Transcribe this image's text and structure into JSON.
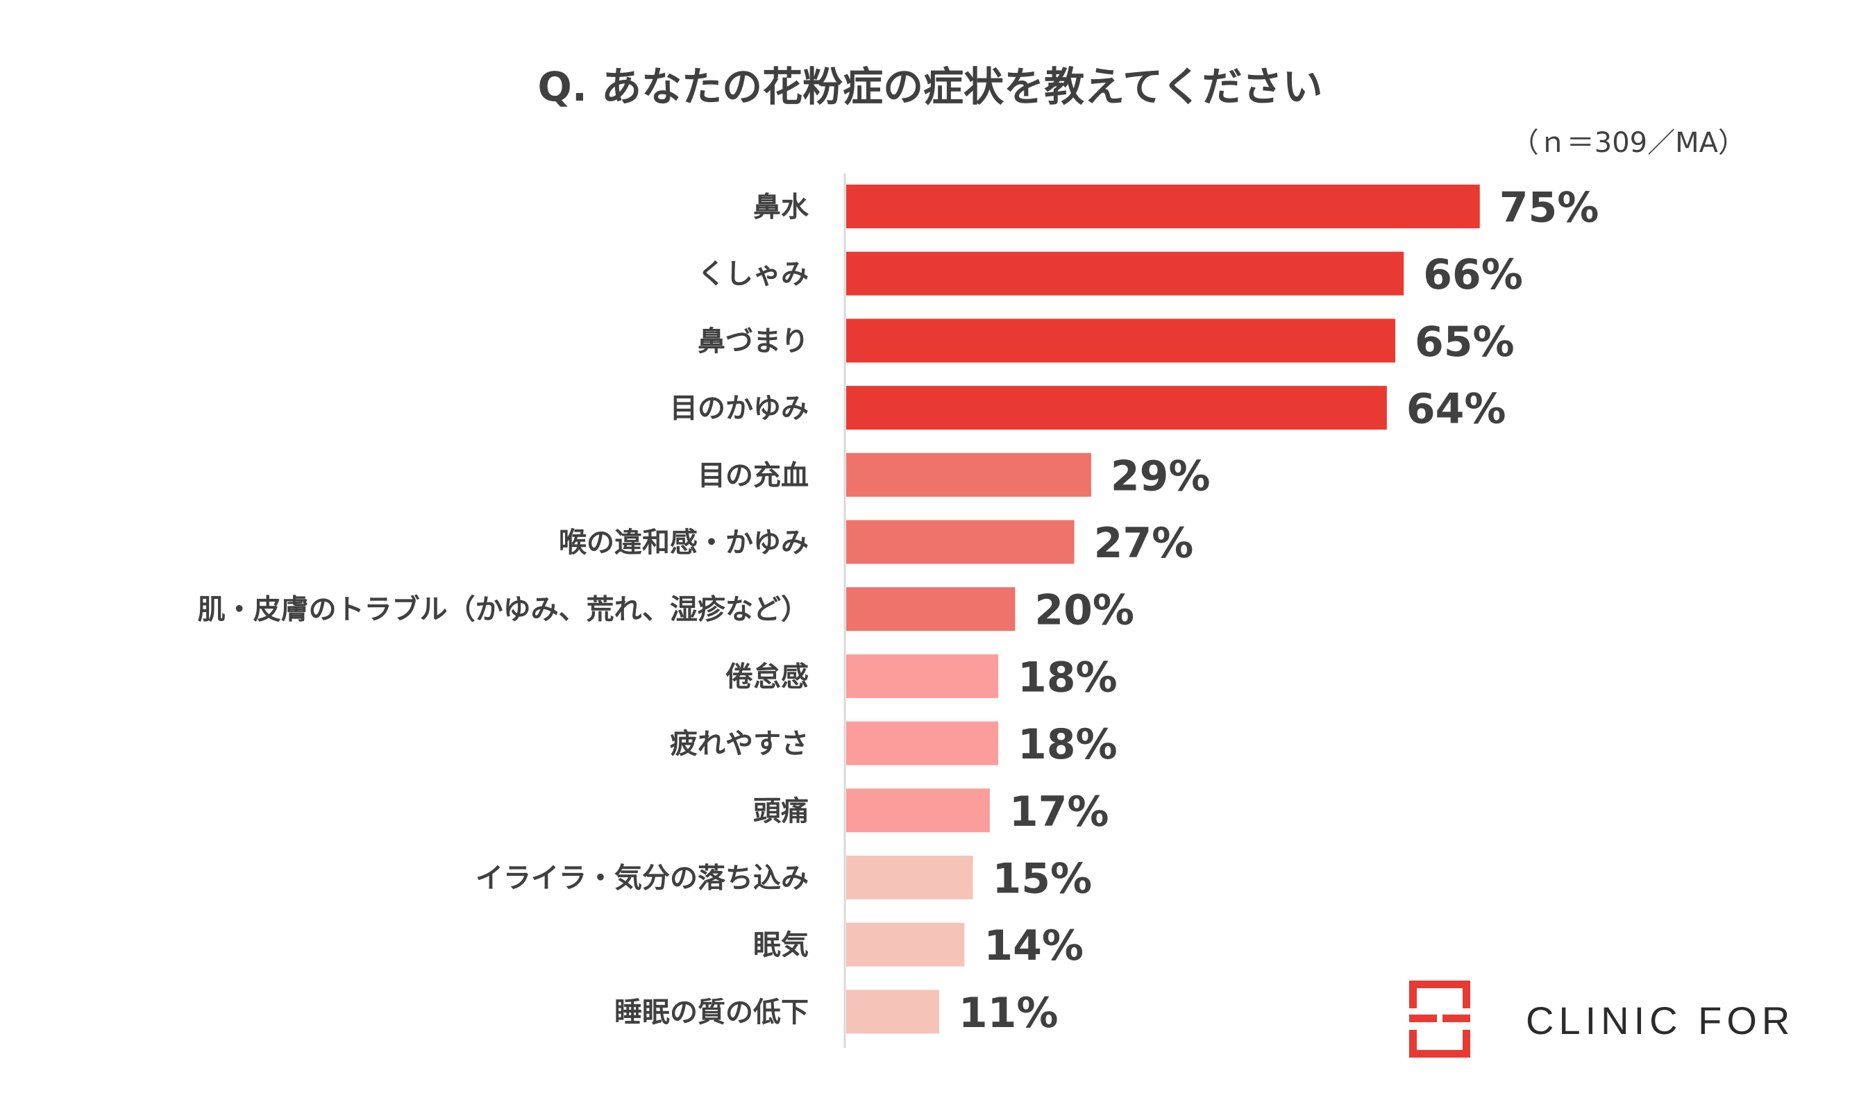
{
  "chart_data": {
    "type": "bar",
    "orientation": "horizontal",
    "title": "Q. あなたの花粉症の症状を教えてください",
    "note": "（ｎ＝309／MA）",
    "categories": [
      "鼻水",
      "くしゃみ",
      "鼻づまり",
      "目のかゆみ",
      "目の充血",
      "喉の違和感・かゆみ",
      "肌・皮膚のトラブル（かゆみ、荒れ、湿疹など）",
      "倦怠感",
      "疲れやすさ",
      "頭痛",
      "イライラ・気分の落ち込み",
      "眠気",
      "睡眠の質の低下"
    ],
    "values": [
      75,
      66,
      65,
      64,
      29,
      27,
      20,
      18,
      18,
      17,
      15,
      14,
      11
    ],
    "value_labels": [
      "75%",
      "66%",
      "65%",
      "64%",
      "29%",
      "27%",
      "20%",
      "18%",
      "18%",
      "17%",
      "15%",
      "14%",
      "11%"
    ],
    "colors": [
      "#e83a33",
      "#e83a33",
      "#e83a33",
      "#e83a33",
      "#ee736b",
      "#ee736b",
      "#ee736b",
      "#fb9e9b",
      "#fb9e9b",
      "#fb9e9b",
      "#f5c3b8",
      "#f5c3b8",
      "#f5c3b8"
    ],
    "xlim": [
      0,
      100
    ],
    "grid": false,
    "legend": "none"
  },
  "logo": {
    "text": "CLINIC FOR",
    "icon": "clinic-cross-logo-icon",
    "color": "#e83a33"
  }
}
